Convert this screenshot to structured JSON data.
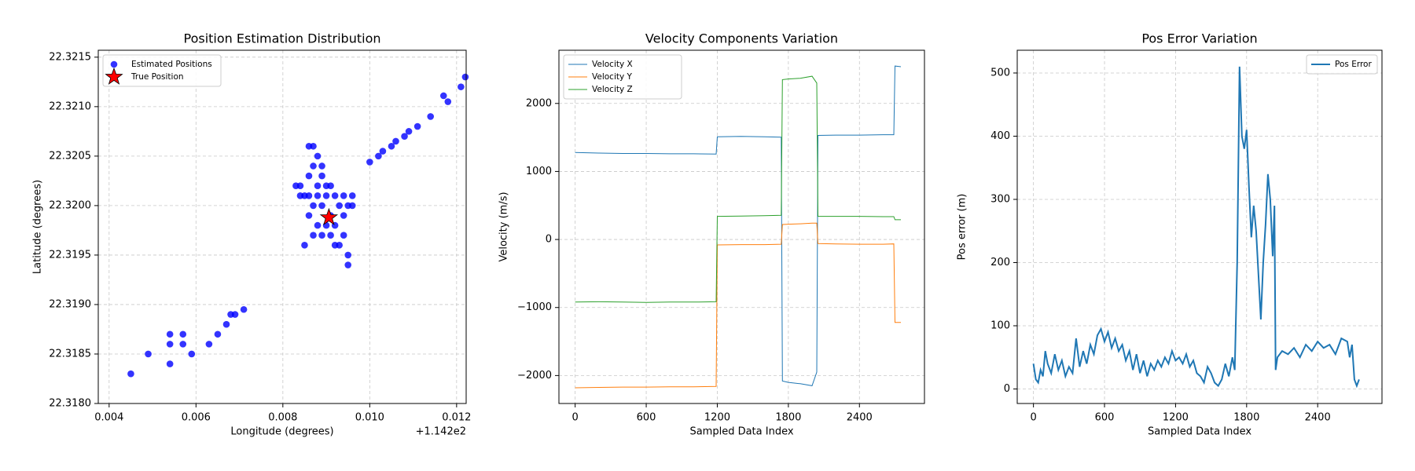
{
  "chart_data": [
    {
      "type": "scatter",
      "title": "Position Estimation Distribution",
      "x_label": "Longitude (degrees)",
      "y_label": "Latitude (degrees)",
      "x_offset_label": "+1.142e2",
      "xlim": [
        0.00375,
        0.01222
      ],
      "ylim": [
        22.318,
        22.32157
      ],
      "xticks": [
        0.004,
        0.006,
        0.008,
        {
          "value": 0.01,
          "label": "0.010"
        },
        0.012
      ],
      "yticks": [
        {
          "value": 22.318,
          "label": "22.3180"
        },
        22.3185,
        {
          "value": 22.319,
          "label": "22.3190"
        },
        22.3195,
        {
          "value": 22.32,
          "label": "22.3200"
        },
        22.3205,
        {
          "value": 22.321,
          "label": "22.3210"
        },
        22.3215
      ],
      "grid": true,
      "legend": "upper-left",
      "series": [
        {
          "name": "Estimated Positions",
          "color": "#0000ff",
          "marker": "circle",
          "x": [
            0.0045,
            0.0049,
            0.0054,
            0.0054,
            0.0054,
            0.0057,
            0.0057,
            0.0059,
            0.0063,
            0.0065,
            0.0067,
            0.0068,
            0.0069,
            0.0071,
            0.01,
            0.0102,
            0.0103,
            0.0105,
            0.0106,
            0.0108,
            0.0109,
            0.0111,
            0.0114,
            0.0117,
            0.0118,
            0.0121,
            0.0122,
            0.0084,
            0.0085,
            0.0086,
            0.0086,
            0.0087,
            0.0087,
            0.0088,
            0.0088,
            0.0089,
            0.0089,
            0.009,
            0.009,
            0.0091,
            0.0091,
            0.0092,
            0.0092,
            0.0093,
            0.0093,
            0.0094,
            0.0094,
            0.0095,
            0.0095,
            0.0095,
            0.0096,
            0.0096,
            0.0086,
            0.0087,
            0.0088,
            0.0087,
            0.0089,
            0.0085,
            0.009,
            0.0083,
            0.0084,
            0.0086,
            0.0088,
            0.0092,
            0.0094,
            0.0091,
            0.0089
          ],
          "y": [
            22.3183,
            22.3185,
            22.3184,
            22.3187,
            22.3186,
            22.3186,
            22.3187,
            22.3185,
            22.3186,
            22.3187,
            22.3188,
            22.3189,
            22.3189,
            22.31895,
            22.32044,
            22.3205,
            22.32055,
            22.3206,
            22.32065,
            22.3207,
            22.32075,
            22.3208,
            22.3209,
            22.32111,
            22.32105,
            22.3212,
            22.3213,
            22.3202,
            22.3201,
            22.3203,
            22.3206,
            22.3206,
            22.3204,
            22.3205,
            22.3202,
            22.3203,
            22.32,
            22.3201,
            22.3202,
            22.3199,
            22.3197,
            22.3198,
            22.3196,
            22.3196,
            22.32,
            22.3199,
            22.3201,
            22.32,
            22.3194,
            22.3195,
            22.3201,
            22.32,
            22.3199,
            22.32,
            22.3198,
            22.3197,
            22.3197,
            22.3196,
            22.3198,
            22.3202,
            22.3201,
            22.3201,
            22.3201,
            22.3201,
            22.3197,
            22.3202,
            22.3204
          ]
        },
        {
          "name": "True Position",
          "color": "#ff0000",
          "marker": "star",
          "x": [
            0.00906
          ],
          "y": [
            22.31988
          ]
        }
      ]
    },
    {
      "type": "line",
      "title": "Velocity Components Variation",
      "x_label": "Sampled Data Index",
      "y_label": "Velocity (m/s)",
      "xlim": [
        -137,
        2949
      ],
      "ylim": [
        -2411,
        2782
      ],
      "xticks": [
        0,
        600,
        1200,
        1800,
        2400
      ],
      "yticks": [
        {
          "value": -2000,
          "label": "−2000"
        },
        {
          "value": -1000,
          "label": "−1000"
        },
        0,
        1000,
        2000
      ],
      "grid": true,
      "legend": "upper-left",
      "x": [
        0,
        200,
        400,
        600,
        800,
        1000,
        1190,
        1200,
        1400,
        1600,
        1740,
        1750,
        1800,
        1900,
        2000,
        2040,
        2050,
        2200,
        2400,
        2600,
        2690,
        2700,
        2750
      ],
      "series": [
        {
          "name": "Velocity X",
          "color": "#1f77b4",
          "values": [
            1280,
            1270,
            1265,
            1265,
            1260,
            1260,
            1255,
            1510,
            1515,
            1510,
            1505,
            -2080,
            -2100,
            -2120,
            -2150,
            -1950,
            1530,
            1535,
            1535,
            1540,
            1540,
            2550,
            2540
          ]
        },
        {
          "name": "Velocity Y",
          "color": "#ff7f0e",
          "values": [
            -2180,
            -2175,
            -2170,
            -2170,
            -2165,
            -2165,
            -2160,
            -80,
            -75,
            -75,
            -70,
            220,
            225,
            230,
            240,
            240,
            -60,
            -65,
            -70,
            -70,
            -65,
            -1220,
            -1220
          ]
        },
        {
          "name": "Velocity Z",
          "color": "#2ca02c",
          "values": [
            -920,
            -915,
            -920,
            -925,
            -920,
            -920,
            -915,
            340,
            345,
            350,
            355,
            2350,
            2360,
            2370,
            2400,
            2300,
            340,
            340,
            340,
            335,
            335,
            290,
            290
          ]
        }
      ]
    },
    {
      "type": "line",
      "title": "Pos Error Variation",
      "x_label": "Sampled Data Index",
      "y_label": "Pos error (m)",
      "xlim": [
        -137,
        2943
      ],
      "ylim": [
        -23,
        536
      ],
      "xticks": [
        0,
        600,
        1200,
        1800,
        2400
      ],
      "yticks": [
        0,
        100,
        200,
        300,
        400,
        500
      ],
      "grid": true,
      "legend": "upper-right",
      "line_width": 2,
      "x": [
        0,
        20,
        40,
        60,
        80,
        100,
        120,
        150,
        180,
        210,
        240,
        270,
        300,
        330,
        360,
        390,
        420,
        450,
        480,
        510,
        540,
        570,
        600,
        630,
        660,
        690,
        720,
        750,
        780,
        810,
        840,
        870,
        900,
        930,
        960,
        990,
        1020,
        1050,
        1080,
        1110,
        1140,
        1170,
        1200,
        1230,
        1260,
        1290,
        1320,
        1350,
        1380,
        1410,
        1440,
        1470,
        1500,
        1530,
        1560,
        1590,
        1620,
        1650,
        1680,
        1700,
        1720,
        1740,
        1760,
        1780,
        1800,
        1820,
        1840,
        1860,
        1880,
        1900,
        1920,
        1940,
        1960,
        1980,
        2000,
        2020,
        2035,
        2045,
        2060,
        2100,
        2150,
        2200,
        2250,
        2300,
        2350,
        2400,
        2450,
        2500,
        2550,
        2600,
        2650,
        2670,
        2690,
        2710,
        2730,
        2750
      ],
      "series": [
        {
          "name": "Pos Error",
          "color": "#1f77b4",
          "values": [
            40,
            15,
            10,
            30,
            20,
            60,
            40,
            25,
            55,
            30,
            45,
            20,
            35,
            25,
            80,
            35,
            60,
            40,
            70,
            55,
            85,
            95,
            75,
            90,
            65,
            80,
            60,
            70,
            45,
            60,
            30,
            55,
            25,
            45,
            20,
            40,
            30,
            45,
            35,
            50,
            40,
            60,
            45,
            50,
            40,
            55,
            35,
            45,
            25,
            20,
            10,
            35,
            25,
            10,
            5,
            15,
            40,
            20,
            50,
            30,
            200,
            510,
            400,
            380,
            410,
            320,
            240,
            290,
            250,
            180,
            110,
            200,
            260,
            340,
            300,
            210,
            290,
            30,
            50,
            60,
            55,
            65,
            50,
            70,
            60,
            75,
            65,
            70,
            55,
            80,
            75,
            50,
            70,
            15,
            5,
            15
          ]
        }
      ]
    }
  ]
}
